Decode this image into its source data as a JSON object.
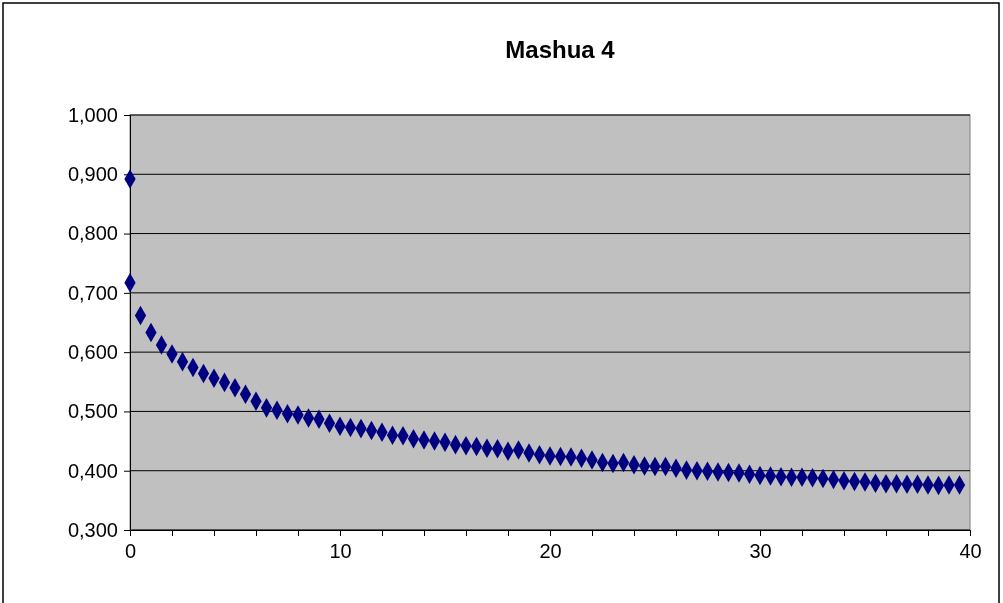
{
  "chart_data": {
    "type": "scatter",
    "title": "Mashua 4",
    "marker": "diamond",
    "grid": "y",
    "xlim": [
      0,
      40
    ],
    "ylim": [
      0.3,
      1.0
    ],
    "xticks": [
      0,
      {
        "value": 2,
        "label": null
      },
      {
        "value": 4,
        "label": null
      },
      {
        "value": 6,
        "label": null
      },
      {
        "value": 8,
        "label": null
      },
      10,
      {
        "value": 12,
        "label": null
      },
      {
        "value": 14,
        "label": null
      },
      {
        "value": 16,
        "label": null
      },
      {
        "value": 18,
        "label": null
      },
      20,
      {
        "value": 22,
        "label": null
      },
      {
        "value": 24,
        "label": null
      },
      {
        "value": 26,
        "label": null
      },
      {
        "value": 28,
        "label": null
      },
      30,
      {
        "value": 32,
        "label": null
      },
      {
        "value": 34,
        "label": null
      },
      {
        "value": 36,
        "label": null
      },
      {
        "value": 38,
        "label": null
      },
      40
    ],
    "yticks": [
      {
        "value": 0.3,
        "label": "0,300"
      },
      {
        "value": 0.4,
        "label": "0,400"
      },
      {
        "value": 0.5,
        "label": "0,500"
      },
      {
        "value": 0.6,
        "label": "0,600"
      },
      {
        "value": 0.7,
        "label": "0,700"
      },
      {
        "value": 0.8,
        "label": "0,800"
      },
      {
        "value": 0.9,
        "label": "0,900"
      },
      {
        "value": 1.0,
        "label": "1,000"
      }
    ],
    "x": [
      0,
      0,
      0.5,
      1,
      1.5,
      2,
      2.5,
      3,
      3.5,
      4,
      4.5,
      5,
      5.5,
      6,
      6.5,
      7,
      7.5,
      8,
      8.5,
      9,
      9.5,
      10,
      10.5,
      11,
      11.5,
      12,
      12.5,
      13,
      13.5,
      14,
      14.5,
      15,
      15.5,
      16,
      16.5,
      17,
      17.5,
      18,
      18.5,
      19,
      19.5,
      20,
      20.5,
      21,
      21.5,
      22,
      22.5,
      23,
      23.5,
      24,
      24.5,
      25,
      25.5,
      26,
      26.5,
      27,
      27.5,
      28,
      28.5,
      29,
      29.5,
      30,
      30.5,
      31,
      31.5,
      32,
      32.5,
      33,
      33.5,
      34,
      34.5,
      35,
      35.5,
      36,
      36.5,
      37,
      37.5,
      38,
      38.5,
      39,
      39.5
    ],
    "series": [
      {
        "color": "#000080",
        "values": [
          0.892,
          0.717,
          0.662,
          0.633,
          0.612,
          0.597,
          0.584,
          0.574,
          0.564,
          0.556,
          0.549,
          0.54,
          0.529,
          0.517,
          0.506,
          0.502,
          0.496,
          0.494,
          0.489,
          0.487,
          0.48,
          0.475,
          0.473,
          0.471,
          0.468,
          0.465,
          0.46,
          0.459,
          0.454,
          0.452,
          0.45,
          0.448,
          0.444,
          0.442,
          0.441,
          0.438,
          0.437,
          0.433,
          0.435,
          0.43,
          0.427,
          0.425,
          0.424,
          0.423,
          0.421,
          0.418,
          0.414,
          0.412,
          0.414,
          0.41,
          0.408,
          0.407,
          0.407,
          0.404,
          0.401,
          0.4,
          0.399,
          0.398,
          0.397,
          0.396,
          0.394,
          0.392,
          0.391,
          0.39,
          0.389,
          0.389,
          0.388,
          0.387,
          0.385,
          0.383,
          0.382,
          0.381,
          0.379,
          0.378,
          0.378,
          0.377,
          0.377,
          0.376,
          0.375,
          0.376,
          0.376
        ]
      }
    ]
  }
}
